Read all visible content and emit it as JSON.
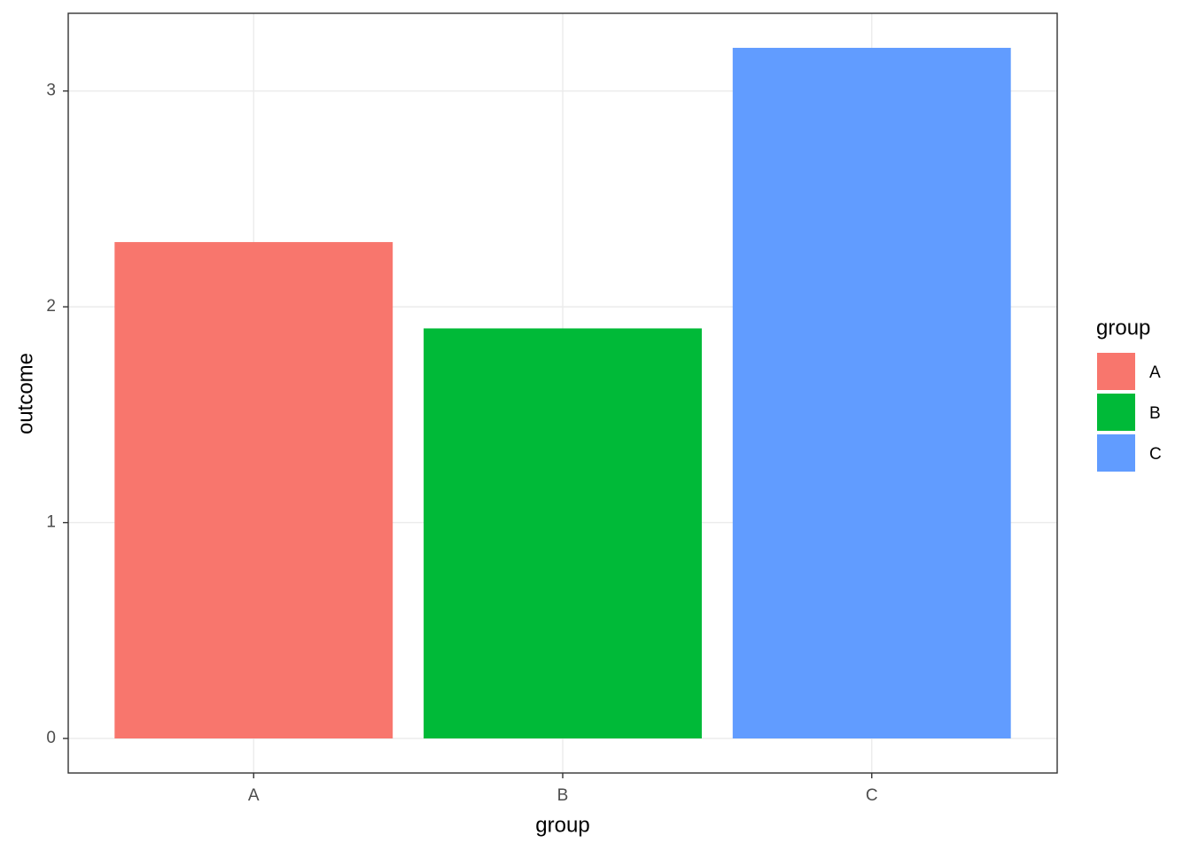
{
  "chart_data": {
    "type": "bar",
    "categories": [
      "A",
      "B",
      "C"
    ],
    "values": [
      2.3,
      1.9,
      3.2
    ],
    "colors": [
      "#F8766D",
      "#00BA38",
      "#619CFF"
    ],
    "x_label": "group",
    "y_label": "outcome",
    "legend_title": "group",
    "legend_position": "right",
    "ylim": [
      -0.16,
      3.36
    ],
    "yticks": [
      0,
      1,
      2,
      3
    ],
    "grid": true
  }
}
